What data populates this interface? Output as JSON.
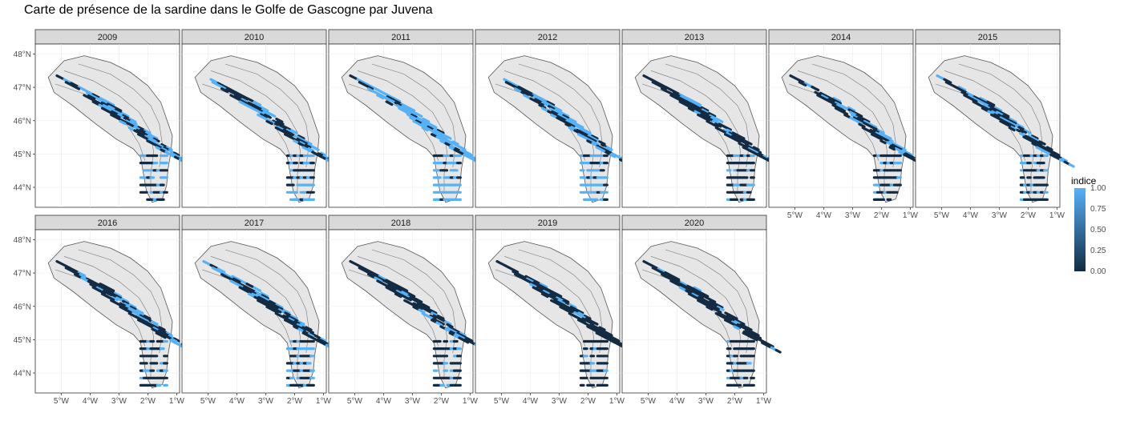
{
  "title": "Carte de présence de la sardine dans le Golfe de Gascogne par Juvena",
  "chart_data": {
    "type": "faceted-map",
    "title": "Carte de présence de la sardine dans le Golfe de Gascogne par Juvena",
    "facets": [
      "2009",
      "2010",
      "2011",
      "2012",
      "2013",
      "2014",
      "2015",
      "2016",
      "2017",
      "2018",
      "2019",
      "2020"
    ],
    "x_ticks": [
      "5°W",
      "4°W",
      "3°W",
      "2°W",
      "1°W"
    ],
    "x_tick_values": [
      -5,
      -4,
      -3,
      -2,
      -1
    ],
    "y_ticks": [
      "48°N",
      "47°N",
      "46°N",
      "45°N",
      "44°N"
    ],
    "y_tick_values": [
      48,
      47,
      46,
      45,
      44
    ],
    "xlim": [
      -5.9,
      -0.9
    ],
    "ylim": [
      43.4,
      48.3
    ],
    "legend": {
      "title": "indice",
      "ticks": [
        "1.00",
        "0.75",
        "0.50",
        "0.25",
        "0.00"
      ],
      "low_color": "#132B43",
      "high_color": "#56B1F7",
      "position": "right"
    },
    "land_color": "#E6E6E6",
    "grid": true,
    "presence_fraction": {
      "2009": 0.55,
      "2010": 0.45,
      "2011": 0.75,
      "2012": 0.7,
      "2013": 0.3,
      "2014": 0.35,
      "2015": 0.35,
      "2016": 0.4,
      "2017": 0.4,
      "2018": 0.3,
      "2019": 0.1,
      "2020": 0.15
    }
  }
}
